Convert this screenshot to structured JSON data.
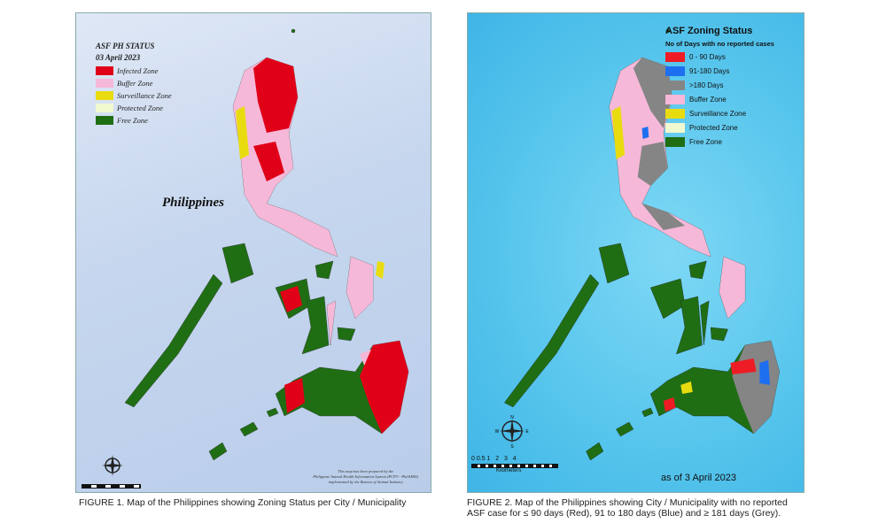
{
  "figure1": {
    "legend_title": "ASF PH STATUS",
    "legend_date": "03 April 2023",
    "legend": [
      {
        "label": "Infected Zone",
        "color": "#e00018"
      },
      {
        "label": "Buffer Zone",
        "color": "#f6b8d8"
      },
      {
        "label": "Surveillance Zone",
        "color": "#e8dc10"
      },
      {
        "label": "Protected Zone",
        "color": "#f0f8d0"
      },
      {
        "label": "Free Zone",
        "color": "#1f6e14"
      }
    ],
    "country_label": "Philippines",
    "credit": [
      "This map has been prepared by the",
      "Philippine Animal Health Information System (PCFV - PhilAHIS)",
      "implemented by the Bureau of Animal Industry"
    ],
    "caption": "FIGURE 1. Map of the Philippines showing Zoning Status per City / Municipality",
    "sea_color": "#c6d6ee"
  },
  "figure2": {
    "legend_title": "ASF Zoning Status",
    "legend_subtitle": "No of Days with no reported cases",
    "legend": [
      {
        "label": "0 - 90 Days",
        "color": "#ee1c24"
      },
      {
        "label": "91-180 Days",
        "color": "#1e6ff0"
      },
      {
        "label": ">180 Days",
        "color": "#858585"
      },
      {
        "label": "Buffer Zone",
        "color": "#f6b8d8"
      },
      {
        "label": "Surveillance Zone",
        "color": "#e8dc10"
      },
      {
        "label": "Protected Zone",
        "color": "#f0f8d0"
      },
      {
        "label": "Free Zone",
        "color": "#1f6e14"
      }
    ],
    "scale_ticks": "0 0.5 1   2   3   4",
    "scale_unit": "Kilometers",
    "compass": {
      "n": "N",
      "e": "E",
      "s": "S",
      "w": "W"
    },
    "as_of": "as of 3 April 2023",
    "caption_line1": "FIGURE 2. Map of the Philippines showing City / Municipality with no reported",
    "caption_line2": "ASF case for ≤ 90 days (Red), 91 to 180 days (Blue) and ≥ 181 days (Grey).",
    "sea_color": "#55c4ec"
  }
}
